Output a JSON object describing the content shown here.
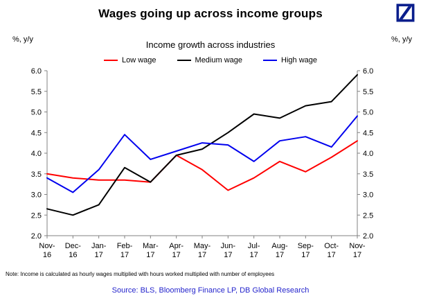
{
  "header": {
    "title": "Wages going up across income groups",
    "logo": "deutsche-bank-logo",
    "brand_color": "#0A1E8C"
  },
  "chart_data": {
    "type": "line",
    "title": "Income growth across industries",
    "y_axis_label_left": "%, y/y",
    "y_axis_label_right": "%, y/y",
    "ylim": [
      2.0,
      6.0
    ],
    "y_ticks": [
      2.0,
      2.5,
      3.0,
      3.5,
      4.0,
      4.5,
      5.0,
      5.5,
      6.0
    ],
    "grid": false,
    "legend_position": "top",
    "categories": [
      "Nov-16",
      "Dec-16",
      "Jan-17",
      "Feb-17",
      "Mar-17",
      "Apr-17",
      "May-17",
      "Jun-17",
      "Jul-17",
      "Aug-17",
      "Sep-17",
      "Oct-17",
      "Nov-17"
    ],
    "series": [
      {
        "name": "Low wage",
        "color": "#FF0000",
        "values": [
          3.5,
          3.4,
          3.35,
          3.35,
          3.3,
          3.95,
          3.6,
          3.1,
          3.4,
          3.8,
          3.55,
          3.9,
          4.3
        ]
      },
      {
        "name": "Medium wage",
        "color": "#000000",
        "values": [
          2.65,
          2.5,
          2.75,
          3.65,
          3.3,
          3.95,
          4.1,
          4.5,
          4.95,
          4.85,
          5.15,
          5.25,
          5.9
        ]
      },
      {
        "name": "High wage",
        "color": "#0000EE",
        "values": [
          3.4,
          3.05,
          3.6,
          4.45,
          3.85,
          4.05,
          4.25,
          4.2,
          3.8,
          4.3,
          4.4,
          4.15,
          4.9
        ]
      }
    ]
  },
  "footer": {
    "note": "Note: Income is calculated as hourly wages multiplied with hours worked multiplied with number of employees",
    "source": "Source: BLS, Bloomberg Finance LP, DB Global Research",
    "source_color": "#2424CC"
  }
}
